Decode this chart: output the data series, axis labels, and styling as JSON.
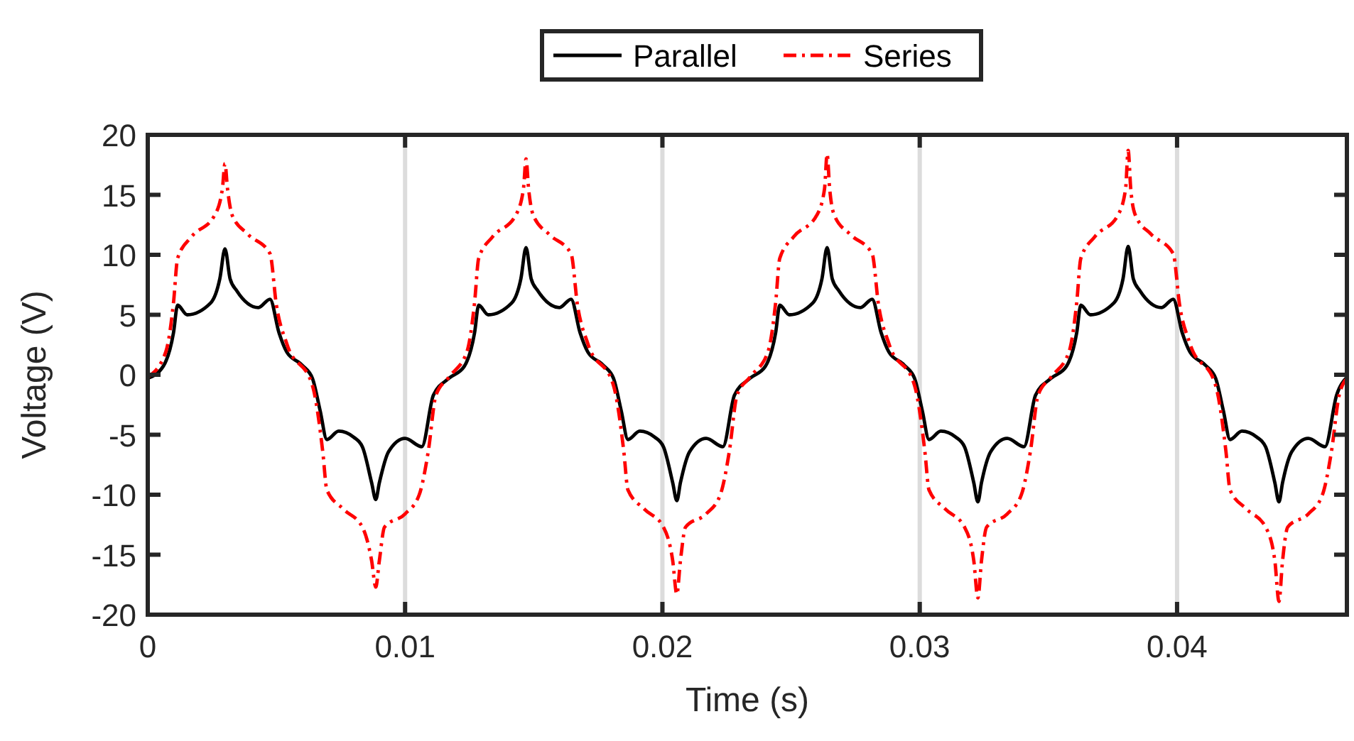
{
  "chart_data": {
    "type": "line",
    "xlabel": "Time (s)",
    "ylabel": "Voltage (V)",
    "xlim": [
      0,
      0.0466
    ],
    "ylim": [
      -20,
      20
    ],
    "xticks": [
      0,
      0.01,
      0.02,
      0.03,
      0.04
    ],
    "yticks": [
      -20,
      -15,
      -10,
      -5,
      0,
      5,
      10,
      15,
      20
    ],
    "grid": "x",
    "legend": "top",
    "marker": "none",
    "series": [
      {
        "name": "Parallel",
        "color": "#000000",
        "line_style": "solid",
        "x": [
          0,
          0.0006,
          0.001,
          0.00116,
          0.00153,
          0.00245,
          0.0028,
          0.003,
          0.0032,
          0.00346,
          0.0043,
          0.00475,
          0.0051,
          0.0054,
          0.006,
          0.0064,
          0.0067,
          0.00696,
          0.00742,
          0.008,
          0.00834,
          0.0087,
          0.00886,
          0.009,
          0.00936,
          0.01,
          0.01065,
          0.0111,
          0.0117,
          0.0123,
          0.0127,
          0.01286,
          0.01323,
          0.01415,
          0.0145,
          0.0147,
          0.0149,
          0.01516,
          0.016,
          0.01645,
          0.0168,
          0.0171,
          0.0177,
          0.0181,
          0.0184,
          0.01866,
          0.01912,
          0.0197,
          0.02004,
          0.0204,
          0.02056,
          0.0207,
          0.02106,
          0.0217,
          0.02235,
          0.0228,
          0.0234,
          0.024,
          0.0244,
          0.02456,
          0.02493,
          0.02585,
          0.0262,
          0.0264,
          0.0266,
          0.02686,
          0.0277,
          0.02815,
          0.0285,
          0.0288,
          0.0294,
          0.0298,
          0.0301,
          0.03036,
          0.03082,
          0.0314,
          0.03174,
          0.0321,
          0.03226,
          0.0324,
          0.03276,
          0.0334,
          0.03405,
          0.0345,
          0.0351,
          0.0357,
          0.0361,
          0.03626,
          0.03663,
          0.03755,
          0.0379,
          0.0381,
          0.0383,
          0.03856,
          0.0394,
          0.03985,
          0.0402,
          0.0405,
          0.0411,
          0.0415,
          0.0418,
          0.04206,
          0.04252,
          0.0431,
          0.04344,
          0.0438,
          0.04396,
          0.0441,
          0.04446,
          0.0451,
          0.04575,
          0.0462,
          0.0466
        ],
        "values": [
          -0.3,
          0.7,
          3.5,
          5.8,
          5.0,
          6.0,
          8.0,
          10.5,
          8.0,
          7.0,
          5.6,
          6.3,
          3.5,
          1.9,
          0.8,
          -0.3,
          -3.0,
          -5.4,
          -4.7,
          -5.2,
          -6.0,
          -9.0,
          -10.4,
          -9.0,
          -6.4,
          -5.3,
          -6.0,
          -1.7,
          -0.3,
          0.7,
          3.5,
          5.8,
          5.0,
          6.0,
          8.0,
          10.6,
          8.0,
          7.0,
          5.6,
          6.3,
          3.5,
          1.9,
          0.8,
          -0.3,
          -3.0,
          -5.4,
          -4.7,
          -5.2,
          -6.0,
          -9.0,
          -10.5,
          -9.0,
          -6.4,
          -5.3,
          -6.0,
          -1.7,
          -0.3,
          0.7,
          3.5,
          5.8,
          5.0,
          6.0,
          8.0,
          10.6,
          8.0,
          7.0,
          5.6,
          6.3,
          3.5,
          1.9,
          0.8,
          -0.3,
          -3.0,
          -5.4,
          -4.7,
          -5.2,
          -6.0,
          -9.0,
          -10.6,
          -9.0,
          -6.4,
          -5.3,
          -6.0,
          -1.7,
          -0.3,
          0.7,
          3.5,
          5.8,
          5.0,
          6.0,
          8.0,
          10.7,
          8.0,
          7.0,
          5.6,
          6.3,
          3.5,
          1.9,
          0.8,
          -0.3,
          -3.0,
          -5.4,
          -4.7,
          -5.2,
          -6.0,
          -9.0,
          -10.6,
          -9.0,
          -6.4,
          -5.3,
          -6.0,
          -1.7,
          -0.2
        ]
      },
      {
        "name": "Series",
        "color": "#ff0000",
        "line_style": "dashdot",
        "x": [
          0,
          0.0007,
          0.001,
          0.00116,
          0.0017,
          0.0026,
          0.0029,
          0.003,
          0.0031,
          0.00328,
          0.0039,
          0.00475,
          0.005,
          0.0054,
          0.0064,
          0.0068,
          0.00696,
          0.0076,
          0.00834,
          0.0087,
          0.00886,
          0.009,
          0.0092,
          0.01,
          0.01055,
          0.0109,
          0.0112,
          0.0117,
          0.0124,
          0.0127,
          0.01286,
          0.0134,
          0.0143,
          0.0146,
          0.0147,
          0.0148,
          0.01498,
          0.0156,
          0.01645,
          0.0167,
          0.0171,
          0.0181,
          0.0185,
          0.01866,
          0.0193,
          0.02004,
          0.0204,
          0.02056,
          0.0207,
          0.0209,
          0.0217,
          0.02225,
          0.0226,
          0.0229,
          0.0234,
          0.0241,
          0.0244,
          0.02456,
          0.0251,
          0.026,
          0.0263,
          0.0264,
          0.0265,
          0.02668,
          0.0273,
          0.02815,
          0.0284,
          0.0288,
          0.0298,
          0.0302,
          0.03036,
          0.031,
          0.03174,
          0.0321,
          0.03226,
          0.0324,
          0.0326,
          0.0334,
          0.03395,
          0.0343,
          0.0346,
          0.0351,
          0.0358,
          0.0361,
          0.03626,
          0.0368,
          0.0377,
          0.038,
          0.0381,
          0.0382,
          0.03838,
          0.039,
          0.03985,
          0.0401,
          0.0405,
          0.0415,
          0.0419,
          0.04206,
          0.0427,
          0.04344,
          0.0438,
          0.04396,
          0.0441,
          0.0443,
          0.0451,
          0.04565,
          0.046,
          0.0463,
          0.0466
        ],
        "values": [
          -0.2,
          1.9,
          6.0,
          9.7,
          11.5,
          13.3,
          15.5,
          17.6,
          15.5,
          13.3,
          11.7,
          10.1,
          5.8,
          2.6,
          -0.9,
          -6.4,
          -9.6,
          -11.2,
          -12.7,
          -15.5,
          -17.7,
          -15.5,
          -12.7,
          -11.6,
          -10.0,
          -6.4,
          -1.7,
          -0.2,
          1.9,
          6.0,
          9.7,
          11.5,
          13.3,
          15.5,
          18.0,
          15.5,
          13.3,
          11.7,
          10.1,
          5.8,
          2.6,
          -0.9,
          -6.4,
          -9.6,
          -11.2,
          -12.7,
          -15.5,
          -18.3,
          -15.5,
          -12.7,
          -11.6,
          -10.0,
          -6.4,
          -1.7,
          -0.2,
          1.9,
          6.0,
          9.7,
          11.5,
          13.3,
          15.5,
          18.4,
          15.5,
          13.3,
          11.7,
          10.1,
          5.8,
          2.6,
          -0.9,
          -6.4,
          -9.6,
          -11.2,
          -12.7,
          -15.5,
          -18.6,
          -15.5,
          -12.7,
          -11.6,
          -10.0,
          -6.4,
          -1.7,
          -0.2,
          1.9,
          6.0,
          9.7,
          11.5,
          13.3,
          15.5,
          18.7,
          15.5,
          13.3,
          11.7,
          10.1,
          5.8,
          2.6,
          -0.9,
          -6.4,
          -9.6,
          -11.2,
          -12.7,
          -15.5,
          -18.9,
          -15.5,
          -12.7,
          -11.6,
          -10.0,
          -6.4,
          -1.7,
          -0.3
        ]
      }
    ]
  }
}
